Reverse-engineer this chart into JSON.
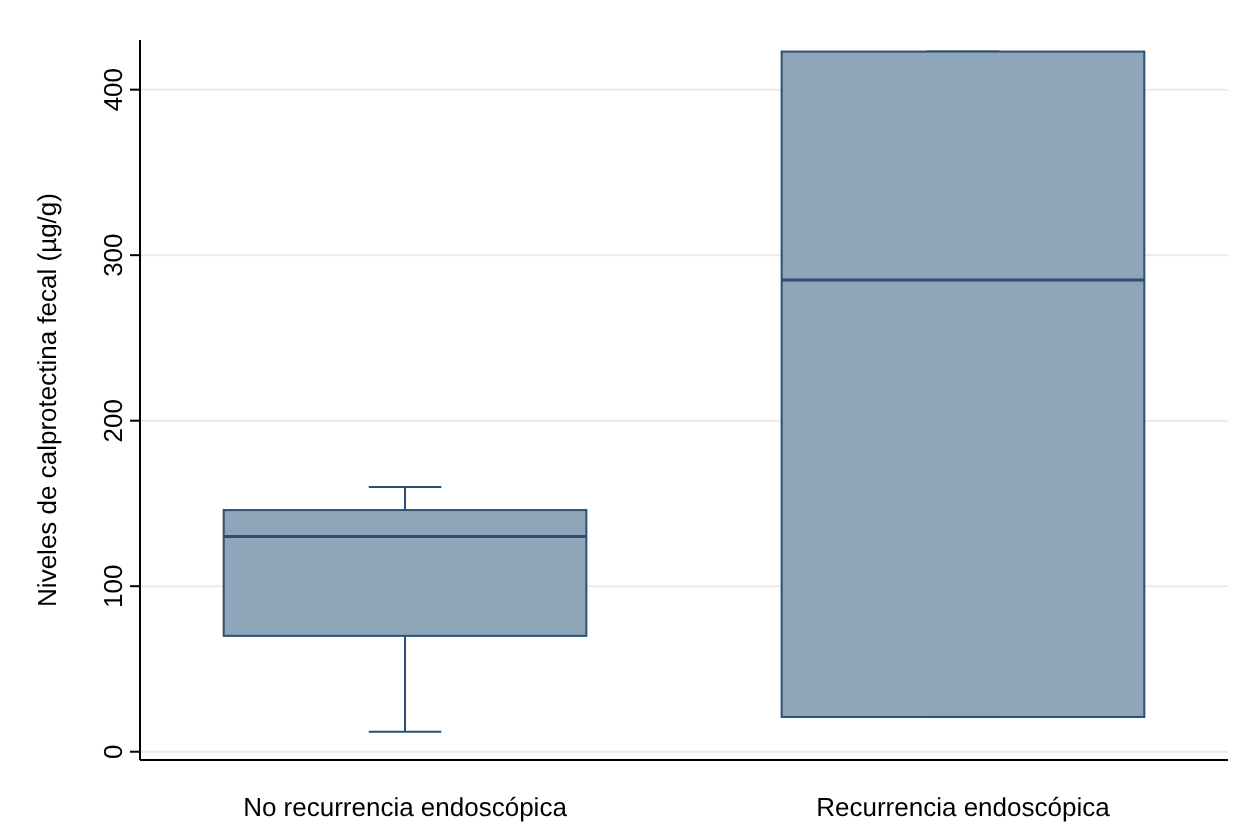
{
  "chart_data": {
    "type": "box",
    "ylabel": "Niveles de calprotectina fecal (µg/g)",
    "categories": [
      "No recurrencia endoscópica",
      "Recurrencia endoscópica"
    ],
    "boxes": [
      {
        "low": 12,
        "q1": 70,
        "median": 130,
        "q3": 146,
        "high": 160
      },
      {
        "low": 21,
        "q1": 21,
        "median": 285,
        "q3": 423,
        "high": 423
      }
    ],
    "color": "#8fa5ba",
    "ylim": [
      -5,
      430
    ],
    "yticks": [
      0,
      100,
      200,
      300,
      400
    ],
    "grid": "y"
  }
}
